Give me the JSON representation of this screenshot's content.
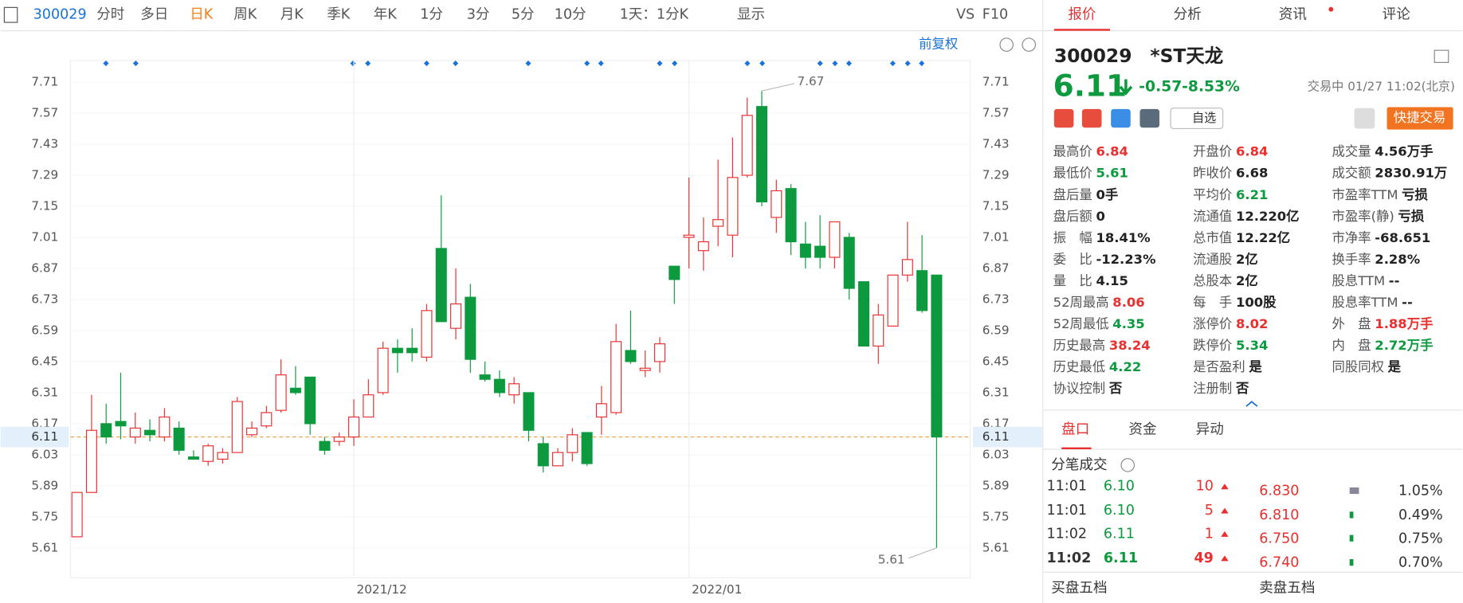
{
  "toolbar": {
    "code": "300029",
    "items": [
      "分时",
      "多日",
      "日K",
      "周K",
      "月K",
      "季K",
      "年K",
      "1分",
      "3分",
      "5分",
      "10分",
      "1天：1分K",
      "显示",
      "VS",
      "F10"
    ],
    "active": 2,
    "adjust": "前复权"
  },
  "chart_data": {
    "type": "candlestick",
    "categories": [
      null,
      null,
      null,
      null,
      null,
      null,
      null,
      null,
      null,
      null,
      null,
      null,
      null,
      null,
      null,
      null,
      null,
      null,
      null,
      "2021/12",
      null,
      null,
      null,
      null,
      null,
      null,
      null,
      null,
      null,
      null,
      null,
      null,
      null,
      null,
      null,
      null,
      null,
      null,
      null,
      null,
      null,
      null,
      "2022/01",
      null,
      null,
      null,
      null,
      null,
      null,
      null,
      null,
      null,
      null,
      null,
      null,
      null,
      null,
      null,
      null,
      null
    ],
    "open": [
      5.66,
      5.86,
      6.17,
      6.18,
      6.11,
      6.14,
      6.11,
      6.15,
      6.02,
      6.0,
      6.01,
      6.04,
      6.12,
      6.16,
      6.23,
      6.33,
      6.38,
      6.09,
      6.09,
      6.11,
      6.2,
      6.31,
      6.51,
      6.51,
      6.47,
      6.96,
      6.6,
      6.74,
      6.39,
      6.37,
      6.3,
      6.31,
      6.08,
      5.98,
      6.04,
      6.13,
      6.2,
      6.22,
      6.5,
      6.41,
      6.45,
      6.88,
      7.01,
      6.95,
      7.06,
      7.02,
      7.29,
      7.6,
      7.1,
      7.23,
      6.98,
      6.97,
      6.92,
      7.01,
      6.81,
      6.52,
      6.61,
      6.84,
      6.86,
      6.84
    ],
    "high": [
      5.86,
      6.3,
      6.26,
      6.4,
      6.22,
      6.19,
      6.24,
      6.18,
      6.05,
      6.08,
      6.06,
      6.29,
      6.18,
      6.25,
      6.46,
      6.43,
      6.38,
      6.11,
      6.13,
      6.28,
      6.37,
      6.54,
      6.55,
      6.6,
      6.71,
      7.2,
      6.87,
      6.8,
      6.45,
      6.41,
      6.38,
      6.31,
      6.11,
      6.06,
      6.15,
      6.13,
      6.34,
      6.62,
      6.68,
      6.5,
      6.56,
      6.88,
      7.28,
      7.1,
      7.36,
      7.46,
      7.64,
      7.67,
      7.27,
      7.25,
      7.08,
      7.11,
      7.08,
      7.03,
      6.81,
      6.71,
      6.84,
      7.08,
      7.02,
      6.84
    ],
    "low": [
      5.66,
      5.86,
      6.08,
      6.1,
      6.08,
      6.09,
      6.09,
      6.03,
      6.01,
      5.98,
      5.99,
      6.04,
      6.11,
      6.15,
      6.22,
      6.3,
      6.12,
      6.03,
      6.07,
      6.07,
      6.2,
      6.3,
      6.4,
      6.45,
      6.45,
      6.63,
      6.55,
      6.4,
      6.36,
      6.29,
      6.26,
      6.09,
      5.95,
      5.98,
      6.0,
      5.98,
      6.12,
      6.21,
      6.44,
      6.38,
      6.4,
      6.71,
      6.87,
      6.86,
      6.97,
      6.92,
      7.28,
      7.15,
      7.03,
      6.93,
      6.87,
      6.87,
      6.87,
      6.73,
      6.52,
      6.44,
      6.61,
      6.81,
      6.67,
      5.61
    ],
    "close": [
      5.86,
      6.14,
      6.11,
      6.16,
      6.15,
      6.12,
      6.2,
      6.05,
      6.01,
      6.07,
      6.04,
      6.27,
      6.15,
      6.22,
      6.39,
      6.31,
      6.17,
      6.05,
      6.11,
      6.2,
      6.3,
      6.51,
      6.49,
      6.49,
      6.68,
      6.63,
      6.71,
      6.46,
      6.37,
      6.31,
      6.35,
      6.14,
      5.98,
      6.04,
      6.12,
      5.99,
      6.26,
      6.54,
      6.45,
      6.42,
      6.53,
      6.82,
      7.02,
      6.99,
      7.09,
      7.28,
      7.56,
      7.17,
      7.22,
      6.99,
      6.92,
      6.92,
      7.08,
      6.78,
      6.52,
      6.66,
      6.84,
      6.91,
      6.68,
      6.11
    ],
    "up_color": "#e93030",
    "down_color": "#0d9a3f",
    "ylim": [
      5.475,
      7.807
    ],
    "yticks": [
      5.61,
      5.75,
      5.89,
      6.03,
      6.17,
      6.31,
      6.45,
      6.59,
      6.73,
      6.87,
      7.01,
      7.15,
      7.29,
      7.43,
      7.57,
      7.71
    ],
    "last": 6.11,
    "high_marker": 7.67,
    "low_marker": 5.61
  },
  "panel": {
    "tabs": [
      "报价",
      "分析",
      "资讯",
      "评论"
    ],
    "code": "300029",
    "name": "*ST天龙",
    "price": "6.11",
    "change": "-0.57",
    "change_pct": "-8.53%",
    "status": "交易中 01/27 11:02(北京)",
    "watch": "自选",
    "quick_trade": "快捷交易",
    "stats": [
      [
        {
          "label": "最高价",
          "value": "6.84",
          "color": "up"
        },
        {
          "label": "最低价",
          "value": "5.61",
          "color": "down"
        },
        {
          "label": "盘后量",
          "value": "0手",
          "color": "flat"
        },
        {
          "label": "盘后额",
          "value": "0",
          "color": "flat"
        },
        {
          "label": "振　幅",
          "value": "18.41%",
          "color": "flat"
        },
        {
          "label": "委　比",
          "value": "-12.23%",
          "color": "flat"
        },
        {
          "label": "量　比",
          "value": "4.15",
          "color": "flat"
        },
        {
          "label": "52周最高",
          "value": "8.06",
          "color": "up"
        },
        {
          "label": "52周最低",
          "value": "4.35",
          "color": "down"
        },
        {
          "label": "历史最高",
          "value": "38.24",
          "color": "up"
        },
        {
          "label": "历史最低",
          "value": "4.22",
          "color": "down"
        },
        {
          "label": "协议控制",
          "value": "否",
          "color": "flat"
        }
      ],
      [
        {
          "label": "开盘价",
          "value": "6.84",
          "color": "up"
        },
        {
          "label": "昨收价",
          "value": "6.68",
          "color": "flat"
        },
        {
          "label": "平均价",
          "value": "6.21",
          "color": "down"
        },
        {
          "label": "流通值",
          "value": "12.220亿",
          "color": "flat"
        },
        {
          "label": "总市值",
          "value": "12.22亿",
          "color": "flat"
        },
        {
          "label": "流通股",
          "value": "2亿",
          "color": "flat"
        },
        {
          "label": "总股本",
          "value": "2亿",
          "color": "flat"
        },
        {
          "label": "每　手",
          "value": "100股",
          "color": "flat"
        },
        {
          "label": "涨停价",
          "value": "8.02",
          "color": "up"
        },
        {
          "label": "跌停价",
          "value": "5.34",
          "color": "down"
        },
        {
          "label": "是否盈利",
          "value": "是",
          "color": "flat"
        },
        {
          "label": "注册制",
          "value": "否",
          "color": "flat"
        }
      ],
      [
        {
          "label": "成交量",
          "value": "4.56万手",
          "color": "flat"
        },
        {
          "label": "成交额",
          "value": "2830.91万",
          "color": "flat"
        },
        {
          "label": "市盈率TTM",
          "value": "亏损",
          "color": "flat"
        },
        {
          "label": "市盈率(静)",
          "value": "亏损",
          "color": "flat"
        },
        {
          "label": "市净率",
          "value": "-68.651",
          "color": "flat"
        },
        {
          "label": "换手率",
          "value": "2.28%",
          "color": "flat"
        },
        {
          "label": "股息TTM",
          "value": "--",
          "color": "flat"
        },
        {
          "label": "股息率TTM",
          "value": "--",
          "color": "flat"
        },
        {
          "label": "外　盘",
          "value": "1.88万手",
          "color": "up"
        },
        {
          "label": "内　盘",
          "value": "2.72万手",
          "color": "down"
        },
        {
          "label": "同股同权",
          "value": "是",
          "color": "flat"
        }
      ]
    ]
  },
  "detail": {
    "tabs": [
      "盘口",
      "资金",
      "异动"
    ],
    "title": "分笔成交",
    "trades": [
      [
        "11:01",
        "6.10",
        "10"
      ],
      [
        "11:01",
        "6.10",
        "5"
      ],
      [
        "11:02",
        "6.11",
        "1"
      ],
      [
        "11:02",
        "6.11",
        "49"
      ]
    ],
    "distribution": [
      [
        "6.830",
        "1.05%"
      ],
      [
        "6.810",
        "0.49%"
      ],
      [
        "6.750",
        "0.75%"
      ],
      [
        "6.740",
        "0.70%"
      ]
    ],
    "footer": [
      "买盘五档",
      "卖盘五档"
    ]
  }
}
